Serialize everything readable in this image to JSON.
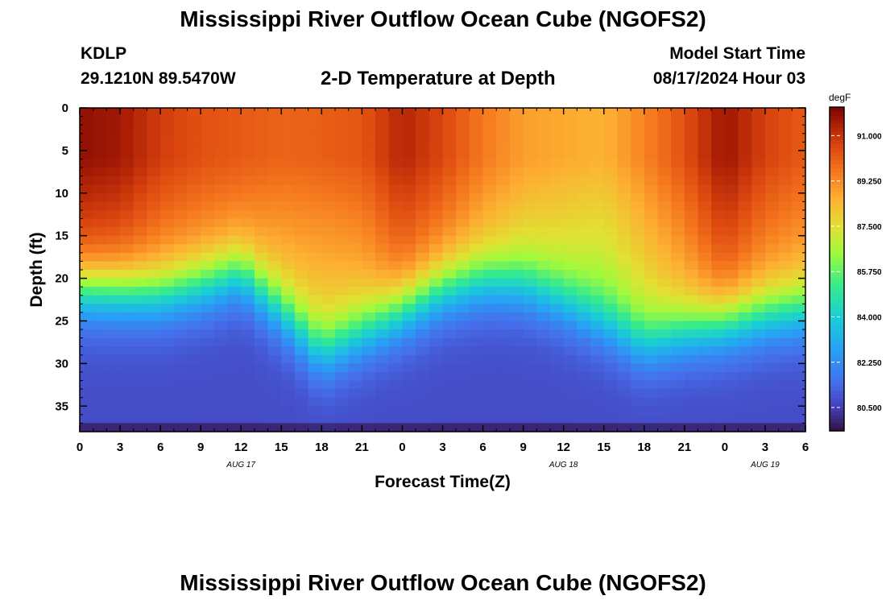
{
  "header": {
    "title": "Mississippi River Outflow Ocean Cube (NGOFS2)",
    "title_repeat": "Mississippi River Outflow Ocean Cube (NGOFS2)",
    "station": "KDLP",
    "coordinates": "29.1210N  89.5470W",
    "subtitle": "2-D Temperature at Depth",
    "model_label": "Model Start Time",
    "model_value": "08/17/2024 Hour 03"
  },
  "chart_data": {
    "type": "heatmap",
    "title": "2-D Temperature at Depth",
    "xlabel": "Forecast Time(Z)",
    "ylabel": "Depth (ft)",
    "x_tick_labels": [
      "0",
      "3",
      "6",
      "9",
      "12",
      "15",
      "18",
      "21",
      "0",
      "3",
      "6",
      "9",
      "12",
      "15",
      "18",
      "21",
      "0",
      "3",
      "6"
    ],
    "x_range_hours": [
      0,
      54
    ],
    "date_labels": [
      {
        "text": "AUG 17",
        "hour": 12
      },
      {
        "text": "AUG 18",
        "hour": 36
      },
      {
        "text": "AUG 19",
        "hour": 51
      }
    ],
    "y_tick_labels": [
      "0",
      "5",
      "10",
      "15",
      "20",
      "25",
      "30",
      "35"
    ],
    "y_range_ft": [
      0,
      38
    ],
    "colorbar": {
      "unit": "degF",
      "tick_labels": [
        "91.000",
        "89.250",
        "87.500",
        "85.750",
        "84.000",
        "82.250",
        "80.500"
      ],
      "range": [
        79.6,
        92.1
      ]
    },
    "thermocline_depth_ft": [
      {
        "hour": 0,
        "depth": 21.5
      },
      {
        "hour": 6,
        "depth": 22
      },
      {
        "hour": 9,
        "depth": 21
      },
      {
        "hour": 12,
        "depth": 19.5
      },
      {
        "hour": 15,
        "depth": 24
      },
      {
        "hour": 18,
        "depth": 29
      },
      {
        "hour": 21,
        "depth": 26.5
      },
      {
        "hour": 24,
        "depth": 24
      },
      {
        "hour": 27,
        "depth": 21.5
      },
      {
        "hour": 30,
        "depth": 20.5
      },
      {
        "hour": 33,
        "depth": 21
      },
      {
        "hour": 36,
        "depth": 23
      },
      {
        "hour": 39,
        "depth": 25.5
      },
      {
        "hour": 42,
        "depth": 28
      },
      {
        "hour": 45,
        "depth": 26.5
      },
      {
        "hour": 48,
        "depth": 25.5
      },
      {
        "hour": 51,
        "depth": 24.5
      },
      {
        "hour": 54,
        "depth": 24
      }
    ],
    "surface_temp_degF": [
      {
        "hour": 0,
        "temp": 91.8
      },
      {
        "hour": 3,
        "temp": 91.6
      },
      {
        "hour": 6,
        "temp": 90.8
      },
      {
        "hour": 9,
        "temp": 90.4
      },
      {
        "hour": 12,
        "temp": 90.2
      },
      {
        "hour": 15,
        "temp": 90.0
      },
      {
        "hour": 18,
        "temp": 90.1
      },
      {
        "hour": 21,
        "temp": 90.3
      },
      {
        "hour": 24,
        "temp": 91.3
      },
      {
        "hour": 27,
        "temp": 90.6
      },
      {
        "hour": 30,
        "temp": 89.6
      },
      {
        "hour": 33,
        "temp": 88.9
      },
      {
        "hour": 36,
        "temp": 88.7
      },
      {
        "hour": 39,
        "temp": 88.5
      },
      {
        "hour": 42,
        "temp": 89.4
      },
      {
        "hour": 45,
        "temp": 90.4
      },
      {
        "hour": 48,
        "temp": 91.7
      },
      {
        "hour": 51,
        "temp": 90.7
      },
      {
        "hour": 54,
        "temp": 90.2
      }
    ],
    "bottom_temp_degF": 80.8
  }
}
